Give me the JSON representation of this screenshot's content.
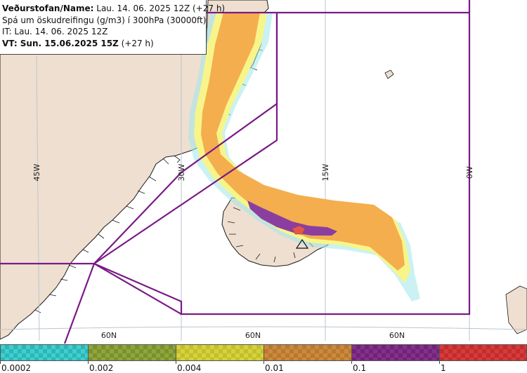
{
  "header": {
    "name_label": "Veðurstofan/Name:",
    "name_value": "Lau. 14. 06. 2025 12Z (+27 h)",
    "description": "Spá um öskudreifingu (g/m3) í 300hPa (30000ft)",
    "issue_time": "IT: Lau. 14. 06. 2025 12Z",
    "valid_label": "VT: Sun. 15.06.2025 15Z",
    "valid_value": "(+27 h)"
  },
  "map": {
    "meridian_labels": [
      "45W",
      "30W",
      "15W",
      "0W"
    ],
    "latitude_labels": [
      "60N",
      "60N",
      "60N"
    ],
    "volcano_marker": "triangle-volcano-symbol",
    "colors": {
      "land": "#efdfd0",
      "ocean": "#ffffff",
      "coast": "#1a1a1a",
      "grid": "#b9c6cf",
      "region_border": "#7a1a86",
      "ash_low": "#9fe8ea",
      "ash_yellow": "#f7f58a",
      "ash_orange": "#f4ae4e",
      "ash_purple": "#8a3fa0",
      "ash_red": "#e0584a"
    }
  },
  "legend": {
    "bins": [
      {
        "color": "#3fcfcf",
        "alt": "#2db5b8"
      },
      {
        "color": "#8fa63a",
        "alt": "#7a9030"
      },
      {
        "color": "#d6d23a",
        "alt": "#c3be2e"
      },
      {
        "color": "#cc8a3c",
        "alt": "#b87832"
      },
      {
        "color": "#85308c",
        "alt": "#6f2476"
      },
      {
        "color": "#d83a3a",
        "alt": "#bf2e2e"
      }
    ],
    "tick_labels": [
      "0.0002",
      "0.002",
      "0.004",
      "0.01",
      "0.1",
      "1"
    ]
  }
}
